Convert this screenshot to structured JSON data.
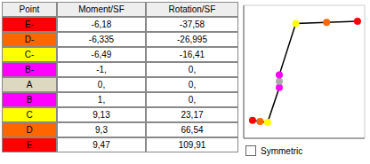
{
  "chart_data": [
    {
      "type": "table",
      "columns": [
        "Point",
        "Moment/SF",
        "Rotation/SF"
      ],
      "rows": [
        [
          "E-",
          "-6,18",
          "-37,58"
        ],
        [
          "D-",
          "-6,335",
          "-26,995"
        ],
        [
          "C-",
          "-6,49",
          "-16,41"
        ],
        [
          "B-",
          "-1,",
          "0,"
        ],
        [
          "A",
          "0,",
          "0,"
        ],
        [
          "B",
          "1,",
          "0,"
        ],
        [
          "C",
          "9,13",
          "23,17"
        ],
        [
          "D",
          "9,3",
          "66,54"
        ],
        [
          "E",
          "9,47",
          "109,91"
        ]
      ],
      "colors": [
        "#ff0000",
        "#ff6600",
        "#ffff00",
        "#ff00ff",
        "#ddd8c0",
        "#ff00ff",
        "#ffff00",
        "#ff6600",
        "#ff0000"
      ]
    },
    {
      "type": "line",
      "x": [
        -37.58,
        -26.995,
        -16.41,
        0.0,
        0.0,
        0.0,
        23.17,
        66.54,
        109.91
      ],
      "series": [
        {
          "values": [
            -6.18,
            -6.335,
            -6.49,
            -1.0,
            0.0,
            1.0,
            9.13,
            9.3,
            9.47
          ],
          "color": "#000000",
          "colors": [
            "#ff0000",
            "#ff6600",
            "#ffff00",
            "#ff00ff",
            "#aaaaaa",
            "#ff00ff",
            "#ffff00",
            "#ff6600",
            "#ff0000"
          ],
          "marker": "circle"
        }
      ],
      "xlim": [
        -50,
        120
      ],
      "ylim": [
        -9,
        12
      ],
      "xticks": [
        -40,
        -20,
        0,
        20,
        40,
        60,
        80,
        100,
        120
      ],
      "yticks": [
        -8,
        -6,
        -4,
        -2,
        0,
        2,
        4,
        6,
        8,
        10
      ],
      "grid": true,
      "tick_labels": false,
      "annotations": [
        "Symmetric"
      ]
    }
  ]
}
